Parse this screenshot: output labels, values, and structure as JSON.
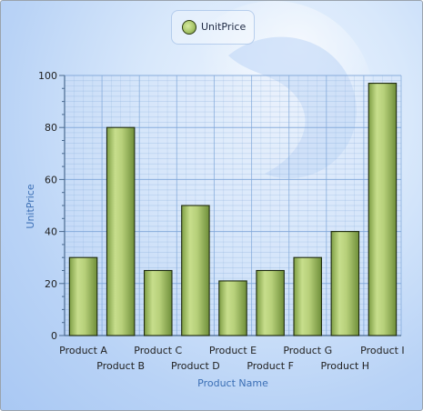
{
  "chart_data": {
    "type": "bar",
    "categories": [
      "Product A",
      "Product B",
      "Product C",
      "Product D",
      "Product E",
      "Product F",
      "Product G",
      "Product H",
      "Product I"
    ],
    "series": [
      {
        "name": "UnitPrice",
        "values": [
          30,
          80,
          25,
          50,
          21,
          25,
          30,
          40,
          97
        ]
      }
    ],
    "xlabel": "Product Name",
    "ylabel": "UnitPrice",
    "ylim": [
      0,
      100
    ],
    "yticks": [
      0,
      20,
      40,
      60,
      80,
      100
    ],
    "grid": true,
    "legend_position": "top-center",
    "colors": {
      "bar_light": "#d2e69a",
      "bar_mid": "#a7c46a",
      "bar_dark": "#6f8f3a",
      "bar_stroke": "#1e2a10",
      "grid": "#7fa6d8",
      "axis_title": "#3b6fb5"
    }
  }
}
